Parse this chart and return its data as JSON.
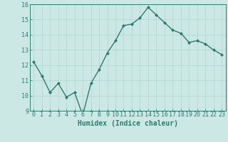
{
  "x": [
    0,
    1,
    2,
    3,
    4,
    5,
    6,
    7,
    8,
    9,
    10,
    11,
    12,
    13,
    14,
    15,
    16,
    17,
    18,
    19,
    20,
    21,
    22,
    23
  ],
  "y": [
    12.2,
    11.3,
    10.2,
    10.8,
    9.9,
    10.2,
    8.7,
    10.8,
    11.7,
    12.8,
    13.6,
    14.6,
    14.7,
    15.1,
    15.8,
    15.3,
    14.8,
    14.3,
    14.1,
    13.5,
    13.6,
    13.4,
    13.0,
    12.7
  ],
  "xlabel": "Humidex (Indice chaleur)",
  "ylim": [
    9,
    16
  ],
  "xlim": [
    -0.5,
    23.5
  ],
  "yticks": [
    9,
    10,
    11,
    12,
    13,
    14,
    15,
    16
  ],
  "xticks": [
    0,
    1,
    2,
    3,
    4,
    5,
    6,
    7,
    8,
    9,
    10,
    11,
    12,
    13,
    14,
    15,
    16,
    17,
    18,
    19,
    20,
    21,
    22,
    23
  ],
  "line_color": "#2d7d6e",
  "marker_color": "#2d7d6e",
  "bg_color": "#cce8e5",
  "grid_color": "#afd4d0",
  "axis_color": "#2d7d6e",
  "tick_color": "#2d7d6e",
  "label_color": "#2d7d6e",
  "xlabel_fontsize": 7,
  "tick_fontsize": 6,
  "marker": "D",
  "markersize": 2.0,
  "linewidth": 1.0
}
